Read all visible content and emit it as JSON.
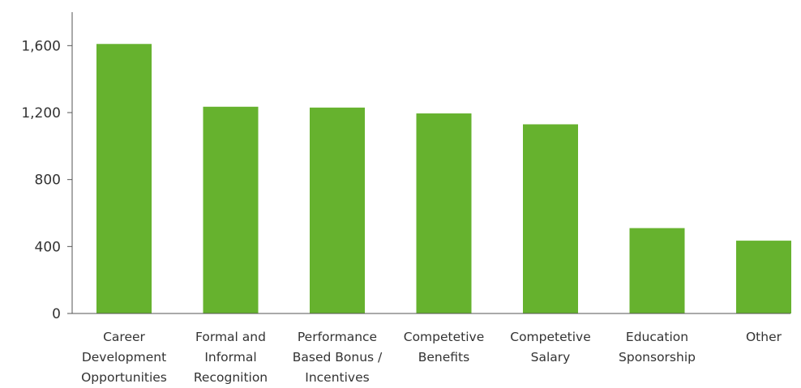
{
  "chart_data": {
    "type": "bar",
    "title": "",
    "xlabel": "",
    "ylabel": "",
    "categories": [
      [
        "Career",
        "Development",
        "Opportunities"
      ],
      [
        "Formal and",
        "Informal",
        "Recognition"
      ],
      [
        "Performance",
        "Based Bonus /",
        "Incentives"
      ],
      [
        "Competetive",
        "Benefits"
      ],
      [
        "Competetive",
        "Salary"
      ],
      [
        "Education",
        "Sponsorship"
      ],
      [
        "Other"
      ]
    ],
    "values": [
      1610,
      1235,
      1230,
      1195,
      1130,
      510,
      435
    ],
    "ylim": [
      0,
      1800
    ],
    "yticks": [
      0,
      400,
      800,
      1200,
      1600
    ],
    "ytick_labels": [
      "0",
      "400",
      "800",
      "1,200",
      "1,600"
    ],
    "grid": false,
    "bar_color": "#66b22e"
  }
}
